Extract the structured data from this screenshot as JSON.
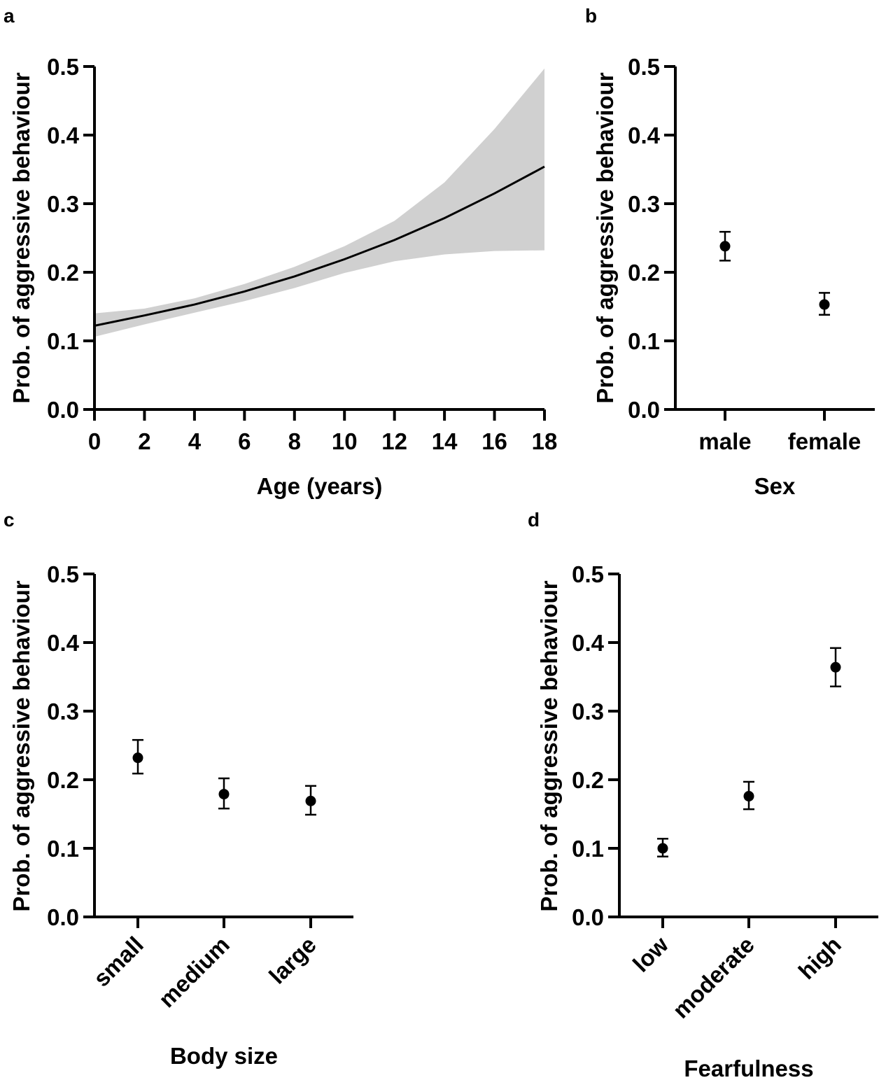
{
  "panels": [
    {
      "letter": "a"
    },
    {
      "letter": "b"
    },
    {
      "letter": "c"
    },
    {
      "letter": "d"
    }
  ],
  "chart_data": [
    {
      "type": "line",
      "panel": "a",
      "xlabel": "Age (years)",
      "ylabel": "Prob. of aggressive behaviour",
      "xlim": [
        0,
        18
      ],
      "ylim": [
        0,
        0.5
      ],
      "xticks": [
        0,
        2,
        4,
        6,
        8,
        10,
        12,
        14,
        16,
        18
      ],
      "yticks": [
        0.0,
        0.1,
        0.2,
        0.3,
        0.4,
        0.5
      ],
      "ytick_labels": [
        "0.0",
        "0.1",
        "0.2",
        "0.3",
        "0.4",
        "0.5"
      ],
      "colors": {
        "line": "#000000",
        "band": "#d0d0d0"
      },
      "series": [
        {
          "x": [
            0,
            2,
            4,
            6,
            8,
            10,
            12,
            14,
            16,
            18
          ],
          "values": [
            0.122,
            0.137,
            0.153,
            0.172,
            0.194,
            0.219,
            0.247,
            0.279,
            0.315,
            0.354
          ],
          "lower": [
            0.106,
            0.124,
            0.141,
            0.158,
            0.177,
            0.199,
            0.216,
            0.226,
            0.231,
            0.232
          ],
          "upper": [
            0.14,
            0.147,
            0.162,
            0.183,
            0.208,
            0.238,
            0.275,
            0.331,
            0.409,
            0.497
          ]
        }
      ]
    },
    {
      "type": "scatter",
      "panel": "b",
      "xlabel": "Sex",
      "ylabel": "Prob. of aggressive behaviour",
      "ylim": [
        0,
        0.5
      ],
      "yticks": [
        0.0,
        0.1,
        0.2,
        0.3,
        0.4,
        0.5
      ],
      "ytick_labels": [
        "0.0",
        "0.1",
        "0.2",
        "0.3",
        "0.4",
        "0.5"
      ],
      "categories": [
        "male",
        "female"
      ],
      "values": [
        0.238,
        0.153
      ],
      "lower": [
        0.217,
        0.138
      ],
      "upper": [
        0.259,
        0.17
      ]
    },
    {
      "type": "scatter",
      "panel": "c",
      "xlabel": "Body size",
      "ylabel": "Prob. of aggressive behaviour",
      "ylim": [
        0,
        0.5
      ],
      "yticks": [
        0.0,
        0.1,
        0.2,
        0.3,
        0.4,
        0.5
      ],
      "ytick_labels": [
        "0.0",
        "0.1",
        "0.2",
        "0.3",
        "0.4",
        "0.5"
      ],
      "categories": [
        "small",
        "medium",
        "large"
      ],
      "values": [
        0.232,
        0.179,
        0.169
      ],
      "lower": [
        0.209,
        0.158,
        0.149
      ],
      "upper": [
        0.258,
        0.202,
        0.191
      ]
    },
    {
      "type": "scatter",
      "panel": "d",
      "xlabel": "Fearfulness",
      "ylabel": "Prob. of aggressive behaviour",
      "ylim": [
        0,
        0.5
      ],
      "yticks": [
        0.0,
        0.1,
        0.2,
        0.3,
        0.4,
        0.5
      ],
      "ytick_labels": [
        "0.0",
        "0.1",
        "0.2",
        "0.3",
        "0.4",
        "0.5"
      ],
      "categories": [
        "low",
        "moderate",
        "high"
      ],
      "values": [
        0.1,
        0.176,
        0.364
      ],
      "lower": [
        0.088,
        0.157,
        0.336
      ],
      "upper": [
        0.114,
        0.197,
        0.392
      ]
    }
  ]
}
